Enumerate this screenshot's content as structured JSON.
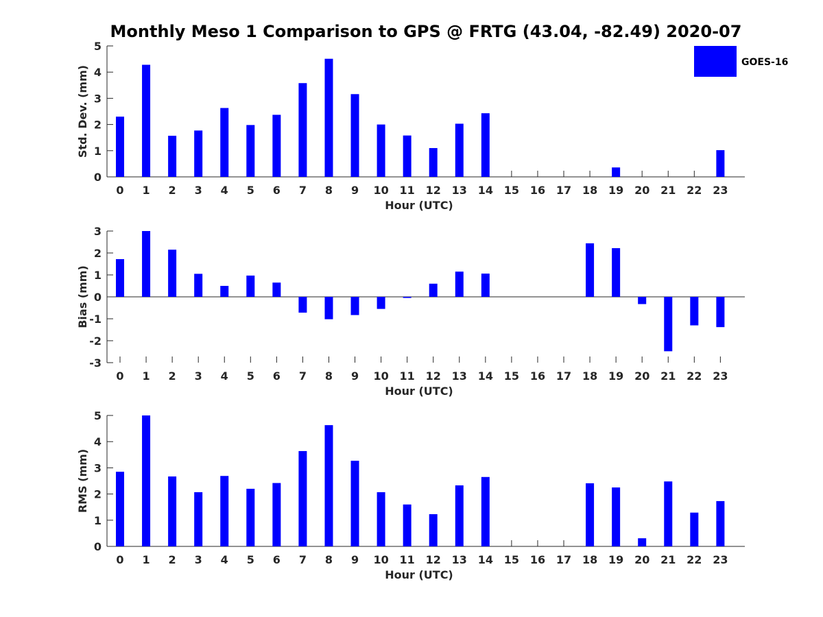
{
  "title": "Monthly Meso 1 Comparison to GPS @ FRTG (43.04, -82.49) 2020-07",
  "legend": {
    "label": "GOES-16",
    "color": "#0000ff",
    "placement": "top-right"
  },
  "chart_data": [
    {
      "type": "bar",
      "categories": [
        "0",
        "1",
        "2",
        "3",
        "4",
        "5",
        "6",
        "7",
        "8",
        "9",
        "10",
        "11",
        "12",
        "13",
        "14",
        "15",
        "16",
        "17",
        "18",
        "19",
        "20",
        "21",
        "22",
        "23"
      ],
      "series": [
        {
          "name": "GOES-16",
          "color": "#0000ff",
          "values": [
            2.3,
            4.28,
            1.57,
            1.77,
            2.63,
            1.98,
            2.37,
            3.58,
            4.51,
            3.16,
            2.0,
            1.58,
            1.1,
            2.03,
            2.43,
            null,
            null,
            null,
            null,
            0.36,
            null,
            null,
            null,
            1.02
          ]
        }
      ],
      "xlabel": "Hour (UTC)",
      "ylabel": "Std. Dev. (mm)",
      "ylim": [
        0,
        5
      ],
      "yticks": [
        "0",
        "1",
        "2",
        "3",
        "4",
        "5"
      ],
      "grid": false
    },
    {
      "type": "bar",
      "categories": [
        "0",
        "1",
        "2",
        "3",
        "4",
        "5",
        "6",
        "7",
        "8",
        "9",
        "10",
        "11",
        "12",
        "13",
        "14",
        "15",
        "16",
        "17",
        "18",
        "19",
        "20",
        "21",
        "22",
        "23"
      ],
      "series": [
        {
          "name": "GOES-16",
          "color": "#0000ff",
          "values": [
            1.72,
            3.0,
            2.15,
            1.05,
            0.5,
            0.97,
            0.65,
            -0.72,
            -1.02,
            -0.83,
            -0.55,
            -0.05,
            0.6,
            1.15,
            1.06,
            null,
            null,
            null,
            2.44,
            2.22,
            -0.33,
            -2.48,
            -1.3,
            -1.38
          ]
        }
      ],
      "xlabel": "Hour (UTC)",
      "ylabel": "Bias (mm)",
      "ylim": [
        -3,
        3
      ],
      "yticks": [
        "-3",
        "-2",
        "-1",
        "0",
        "1",
        "2",
        "3"
      ],
      "grid": false
    },
    {
      "type": "bar",
      "categories": [
        "0",
        "1",
        "2",
        "3",
        "4",
        "5",
        "6",
        "7",
        "8",
        "9",
        "10",
        "11",
        "12",
        "13",
        "14",
        "15",
        "16",
        "17",
        "18",
        "19",
        "20",
        "21",
        "22",
        "23"
      ],
      "series": [
        {
          "name": "GOES-16",
          "color": "#0000ff",
          "values": [
            2.85,
            5.0,
            2.67,
            2.07,
            2.69,
            2.2,
            2.42,
            3.64,
            4.63,
            3.27,
            2.07,
            1.6,
            1.23,
            2.33,
            2.65,
            null,
            null,
            null,
            2.41,
            2.25,
            0.31,
            2.48,
            1.29,
            1.73
          ]
        }
      ],
      "xlabel": "Hour (UTC)",
      "ylabel": "RMS (mm)",
      "ylim": [
        0,
        5
      ],
      "yticks": [
        "0",
        "1",
        "2",
        "3",
        "4",
        "5"
      ],
      "grid": false
    }
  ]
}
